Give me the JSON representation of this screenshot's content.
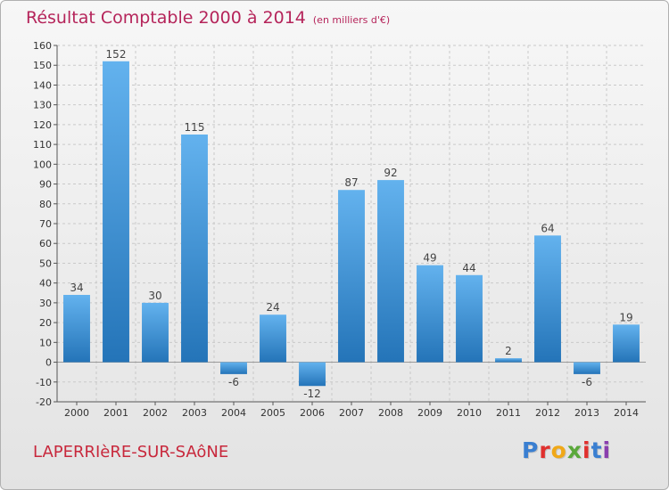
{
  "header": {
    "title": "Résultat Comptable 2000 à 2014",
    "subtitle": "(en milliers d'€)"
  },
  "footer": {
    "commune": "LAPERRIèRE-SUR-SAôNE",
    "brand": "Proxiti",
    "brand_colors": [
      "#3a7fd1",
      "#e0302e",
      "#f0a818",
      "#5aa83a",
      "#e0302e",
      "#3a7fd1",
      "#8a3fae"
    ]
  },
  "chart_data": {
    "type": "bar",
    "title": "Résultat Comptable 2000 à 2014",
    "subtitle": "(en milliers d'€)",
    "categories": [
      "2000",
      "2001",
      "2002",
      "2003",
      "2004",
      "2005",
      "2006",
      "2007",
      "2008",
      "2009",
      "2010",
      "2011",
      "2012",
      "2013",
      "2014"
    ],
    "values": [
      34,
      152,
      30,
      115,
      -6,
      24,
      -12,
      87,
      92,
      49,
      44,
      2,
      64,
      -6,
      19
    ],
    "data_labels": [
      "34",
      "152",
      "30",
      "115",
      "-6",
      "24",
      "-12",
      "87",
      "92",
      "49",
      "44",
      "2",
      "64",
      "-6",
      "19"
    ],
    "ylim": [
      -20,
      160
    ],
    "yticks": [
      -20,
      -10,
      0,
      10,
      20,
      30,
      40,
      50,
      60,
      70,
      80,
      90,
      100,
      110,
      120,
      130,
      140,
      150,
      160
    ],
    "ytick_labels": [
      "-20",
      "-10",
      "0",
      "10",
      "20",
      "30",
      "40",
      "50",
      "60",
      "70",
      "80",
      "90",
      "100",
      "110",
      "120",
      "130",
      "140",
      "150",
      "160"
    ],
    "grid": true,
    "bar_color": "#3d93d9",
    "bar_color_light": "#63b2ee",
    "bar_color_dark": "#2474b8",
    "title_color": "#b5245a",
    "commune_color": "#c8283c"
  }
}
